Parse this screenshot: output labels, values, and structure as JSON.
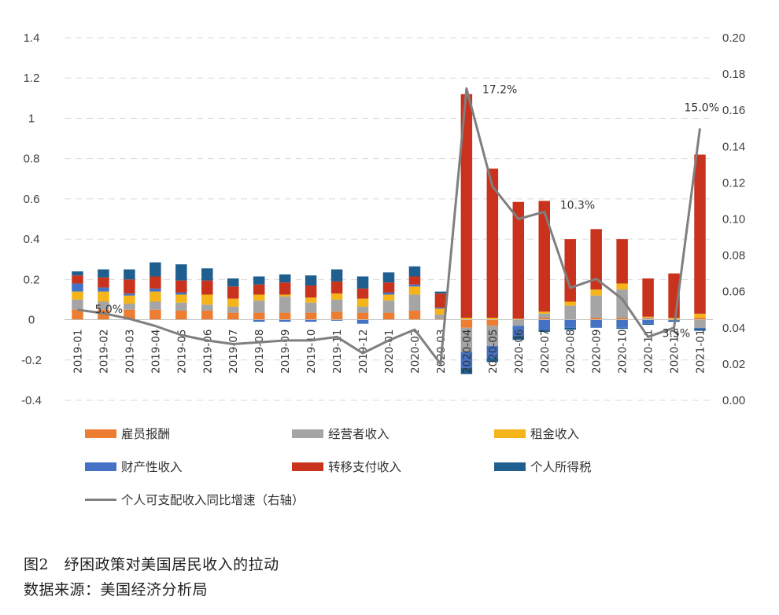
{
  "chart_data": {
    "type": "bar",
    "stacked": true,
    "categories": [
      "2019-01",
      "2019-02",
      "2019-03",
      "2019-04",
      "2019-05",
      "2019-06",
      "2019-07",
      "2019-08",
      "2019-09",
      "2019-10",
      "2019-11",
      "2019-12",
      "2020-01",
      "2020-02",
      "2020-03",
      "2020-04",
      "2020-05",
      "2020-06",
      "2020-07",
      "2020-08",
      "2020-09",
      "2020-10",
      "2020-11",
      "2020-12",
      "2021-01"
    ],
    "left_axis": {
      "ylim": [
        -0.4,
        1.4
      ],
      "ticks": [
        "-0.4",
        "-0.2",
        "0",
        "0.2",
        "0.4",
        "0.6",
        "0.8",
        "1",
        "1.2",
        "1.4"
      ]
    },
    "right_axis": {
      "ylim": [
        0,
        0.2
      ],
      "ticks": [
        "0.00",
        "0.02",
        "0.04",
        "0.06",
        "0.08",
        "0.10",
        "0.12",
        "0.14",
        "0.16",
        "0.18",
        "0.20"
      ]
    },
    "grid": true,
    "legend_position": "bottom",
    "series": [
      {
        "name": "雇员报酬",
        "color": "#ED7D31",
        "values": [
          0.05,
          0.05,
          0.05,
          0.05,
          0.045,
          0.045,
          0.035,
          0.035,
          0.035,
          0.035,
          0.04,
          0.035,
          0.035,
          0.045,
          0.005,
          -0.04,
          -0.03,
          0.0,
          0.01,
          0.0,
          0.01,
          0.01,
          0.005,
          0.005,
          0.01
        ]
      },
      {
        "name": "经营者收入",
        "color": "#A5A5A5",
        "values": [
          0.05,
          0.04,
          0.03,
          0.04,
          0.04,
          0.03,
          0.03,
          0.06,
          0.08,
          0.05,
          0.06,
          0.03,
          0.06,
          0.08,
          0.02,
          -0.12,
          -0.1,
          -0.03,
          0.02,
          0.07,
          0.11,
          0.14,
          0.005,
          0.0,
          -0.04
        ]
      },
      {
        "name": "租金收入",
        "color": "#F4B41A",
        "values": [
          0.04,
          0.05,
          0.04,
          0.05,
          0.04,
          0.05,
          0.04,
          0.03,
          0.01,
          0.025,
          0.03,
          0.04,
          0.03,
          0.04,
          0.03,
          0.01,
          0.01,
          0.005,
          0.01,
          0.02,
          0.03,
          0.03,
          0.005,
          0.005,
          0.02
        ]
      },
      {
        "name": "财产性收入",
        "color": "#4472C4",
        "values": [
          0.04,
          0.02,
          0.01,
          0.015,
          0.01,
          0.0,
          0.0,
          -0.01,
          -0.01,
          -0.01,
          -0.005,
          -0.02,
          0.01,
          0.01,
          0.005,
          -0.08,
          -0.06,
          -0.05,
          -0.05,
          -0.04,
          -0.04,
          -0.04,
          -0.02,
          -0.005,
          -0.005
        ]
      },
      {
        "name": "转移支付收入",
        "color": "#C9331D",
        "values": [
          0.04,
          0.05,
          0.07,
          0.06,
          0.06,
          0.07,
          0.06,
          0.05,
          0.06,
          0.06,
          0.06,
          0.05,
          0.05,
          0.04,
          0.07,
          1.11,
          0.74,
          0.58,
          0.55,
          0.31,
          0.3,
          0.22,
          0.19,
          0.22,
          0.79
        ]
      },
      {
        "name": "个人所得税",
        "color": "#1F5F8F",
        "values": [
          0.02,
          0.04,
          0.05,
          0.07,
          0.08,
          0.06,
          0.04,
          0.04,
          0.04,
          0.05,
          0.06,
          0.06,
          0.05,
          0.05,
          0.01,
          -0.03,
          -0.02,
          -0.02,
          -0.01,
          -0.01,
          0.0,
          -0.005,
          -0.005,
          -0.005,
          -0.01
        ]
      }
    ],
    "line": {
      "name": "个人可支配收入同比增速（右轴）",
      "color": "#7F7F7F",
      "axis": "right",
      "values": [
        0.05,
        0.048,
        0.045,
        0.041,
        0.036,
        0.033,
        0.031,
        0.032,
        0.033,
        0.033,
        0.035,
        0.026,
        0.033,
        0.039,
        0.02,
        0.172,
        0.118,
        0.1,
        0.104,
        0.062,
        0.067,
        0.056,
        0.035,
        0.04,
        0.15
      ]
    },
    "annotations": [
      "5.0%",
      "17.2%",
      "10.3%",
      "3.5%",
      "15.0%"
    ]
  },
  "caption": {
    "figure": "图2　纾困政策对美国居民收入的拉动",
    "source": "数据来源：美国经济分析局"
  }
}
